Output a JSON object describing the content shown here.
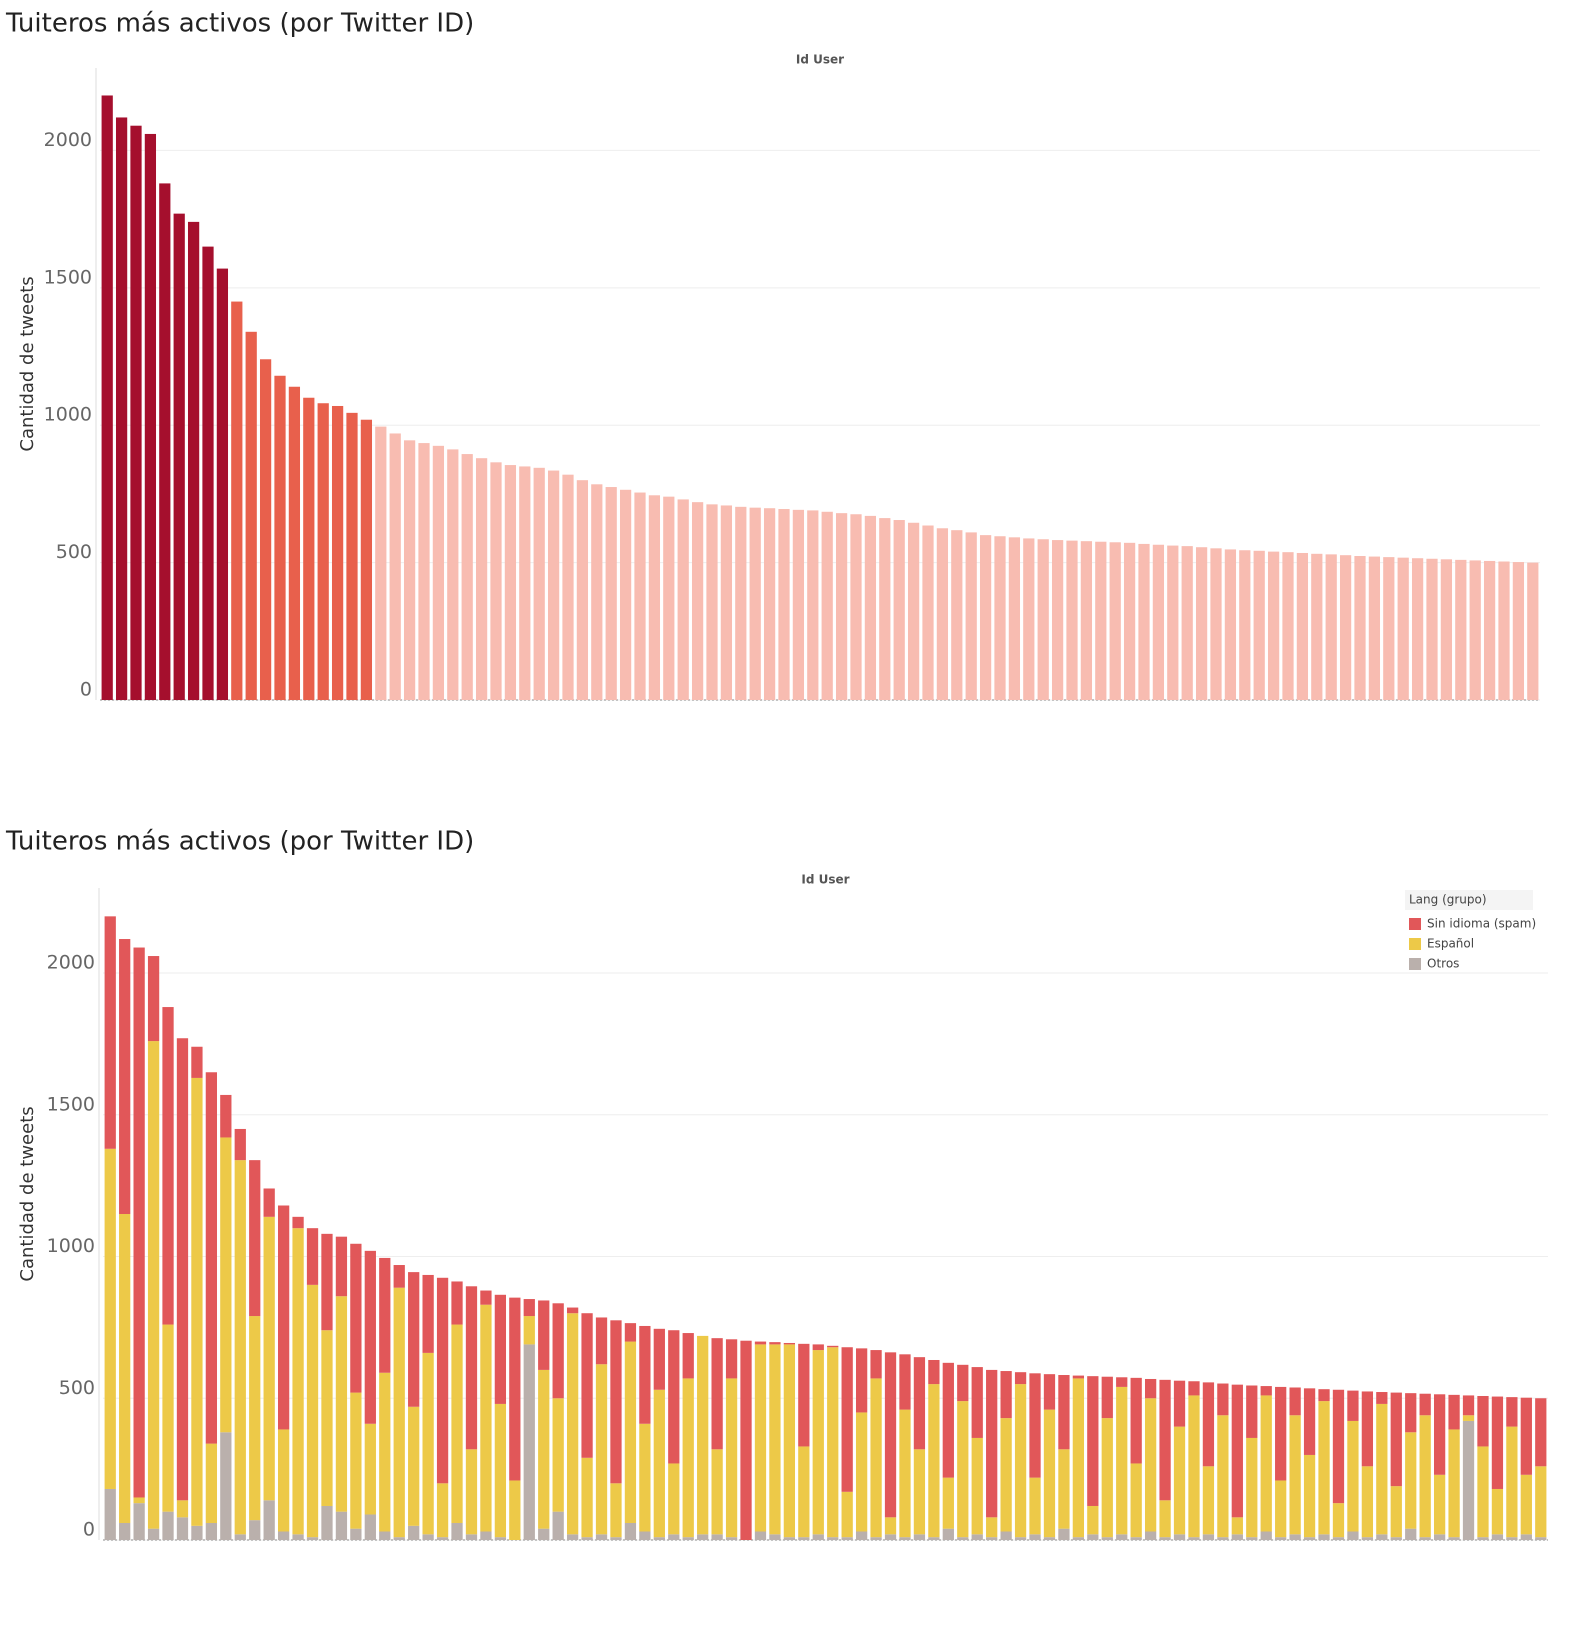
{
  "chart_data": [
    {
      "type": "bar",
      "title": "Tuiteros más activos (por Twitter ID)",
      "x_header": "Id User",
      "y_label": "Cantidad de tweets",
      "categories": [
        null,
        null,
        null,
        null,
        null,
        null,
        null,
        null,
        null,
        null,
        null,
        null,
        null,
        null,
        null,
        null,
        null,
        null,
        null,
        null,
        null,
        null,
        null,
        null,
        null,
        null,
        null,
        null,
        null,
        null,
        null,
        null,
        null,
        null,
        null,
        null,
        null,
        null,
        null,
        null,
        null,
        null,
        null,
        null,
        null,
        null,
        null,
        null,
        null,
        null,
        null,
        null,
        null,
        null,
        null,
        null,
        null,
        null,
        null,
        null,
        null,
        null,
        null,
        null,
        null,
        null,
        null,
        null,
        null,
        null,
        null,
        null,
        null,
        null,
        null,
        null,
        null,
        null,
        null,
        null,
        null,
        null,
        null,
        null,
        null,
        null,
        null,
        null,
        null,
        null,
        null,
        null,
        null,
        null,
        null,
        null,
        null,
        null,
        null,
        null
      ],
      "values": [
        2200,
        2120,
        2090,
        2060,
        1880,
        1770,
        1740,
        1650,
        1570,
        1450,
        1340,
        1240,
        1180,
        1140,
        1100,
        1080,
        1070,
        1045,
        1020,
        995,
        970,
        945,
        935,
        925,
        912,
        895,
        880,
        865,
        855,
        850,
        845,
        835,
        820,
        800,
        785,
        775,
        765,
        755,
        745,
        740,
        730,
        720,
        712,
        708,
        703,
        700,
        698,
        695,
        692,
        690,
        685,
        680,
        676,
        670,
        662,
        655,
        645,
        635,
        625,
        618,
        610,
        600,
        596,
        592,
        588,
        585,
        582,
        580,
        578,
        576,
        574,
        572,
        568,
        565,
        562,
        560,
        556,
        552,
        548,
        545,
        543,
        540,
        538,
        535,
        532,
        530,
        527,
        524,
        522,
        520,
        518,
        516,
        514,
        512,
        510,
        508,
        506,
        504,
        502,
        500
      ],
      "colors": [
        "#a50f2d",
        "#a50f2d",
        "#a50f2d",
        "#a50f2d",
        "#a50f2d",
        "#a50f2d",
        "#a50f2d",
        "#a50f2d",
        "#a50f2d",
        "#e8604c",
        "#e8604c",
        "#e8604c",
        "#e8604c",
        "#e8604c",
        "#e8604c",
        "#e8604c",
        "#e8604c",
        "#e8604c",
        "#e8604c",
        "#f8bcb1",
        "#f8bcb1",
        "#f8bcb1",
        "#f8bcb1",
        "#f8bcb1",
        "#f8bcb1",
        "#f8bcb1",
        "#f8bcb1",
        "#f8bcb1",
        "#f8bcb1",
        "#f8bcb1",
        "#f8bcb1",
        "#f8bcb1",
        "#f8bcb1",
        "#f8bcb1",
        "#f8bcb1",
        "#f8bcb1",
        "#f8bcb1",
        "#f8bcb1",
        "#f8bcb1",
        "#f8bcb1",
        "#f8bcb1",
        "#f8bcb1",
        "#f8bcb1",
        "#f8bcb1",
        "#f8bcb1",
        "#f8bcb1",
        "#f8bcb1",
        "#f8bcb1",
        "#f8bcb1",
        "#f8bcb1",
        "#f8bcb1",
        "#f8bcb1",
        "#f8bcb1",
        "#f8bcb1",
        "#f8bcb1",
        "#f8bcb1",
        "#f8bcb1",
        "#f8bcb1",
        "#f8bcb1",
        "#f8bcb1",
        "#f8bcb1",
        "#f8bcb1",
        "#f8bcb1",
        "#f8bcb1",
        "#f8bcb1",
        "#f8bcb1",
        "#f8bcb1",
        "#f8bcb1",
        "#f8bcb1",
        "#f8bcb1",
        "#f8bcb1",
        "#f8bcb1",
        "#f8bcb1",
        "#f8bcb1",
        "#f8bcb1",
        "#f8bcb1",
        "#f8bcb1",
        "#f8bcb1",
        "#f8bcb1",
        "#f8bcb1",
        "#f8bcb1",
        "#f8bcb1",
        "#f8bcb1",
        "#f8bcb1",
        "#f8bcb1",
        "#f8bcb1",
        "#f8bcb1",
        "#f8bcb1",
        "#f8bcb1",
        "#f8bcb1",
        "#f8bcb1",
        "#f8bcb1",
        "#f8bcb1",
        "#f8bcb1",
        "#f8bcb1",
        "#f8bcb1",
        "#f8bcb1",
        "#f8bcb1",
        "#f8bcb1",
        "#f8bcb1"
      ],
      "ylim": [
        0,
        2300
      ],
      "yticks": [
        0,
        500,
        1000,
        1500,
        2000
      ],
      "grid": true
    },
    {
      "type": "stacked_bar",
      "title": "Tuiteros más activos (por Twitter ID)",
      "x_header": "Id User",
      "y_label": "Cantidad de tweets",
      "legend_title": "Lang (grupo)",
      "legend": "top-right",
      "categories": [
        null,
        null,
        null,
        null,
        null,
        null,
        null,
        null,
        null,
        null,
        null,
        null,
        null,
        null,
        null,
        null,
        null,
        null,
        null,
        null,
        null,
        null,
        null,
        null,
        null,
        null,
        null,
        null,
        null,
        null,
        null,
        null,
        null,
        null,
        null,
        null,
        null,
        null,
        null,
        null,
        null,
        null,
        null,
        null,
        null,
        null,
        null,
        null,
        null,
        null,
        null,
        null,
        null,
        null,
        null,
        null,
        null,
        null,
        null,
        null,
        null,
        null,
        null,
        null,
        null,
        null,
        null,
        null,
        null,
        null,
        null,
        null,
        null,
        null,
        null,
        null,
        null,
        null,
        null,
        null,
        null,
        null,
        null,
        null,
        null,
        null,
        null,
        null,
        null,
        null,
        null,
        null,
        null,
        null,
        null,
        null,
        null,
        null,
        null,
        null
      ],
      "series": [
        {
          "name": "Sin idioma (spam)",
          "color": "#e15759",
          "values": [
            820,
            970,
            1940,
            300,
            1120,
            1630,
            110,
            1310,
            150,
            110,
            550,
            100,
            790,
            40,
            200,
            340,
            210,
            525,
            610,
            405,
            80,
            475,
            275,
            725,
            152,
            575,
            50,
            385,
            645,
            60,
            245,
            335,
            20,
            510,
            165,
            575,
            65,
            345,
            215,
            470,
            160,
            0,
            392,
            138,
            703,
            10,
            8,
            5,
            362,
            20,
            5,
            510,
            226,
            100,
            582,
            195,
            325,
            85,
            405,
            128,
            250,
            520,
            166,
            42,
            368,
            125,
            262,
            10,
            458,
            146,
            34,
            302,
            68,
            425,
            162,
            50,
            296,
            112,
            468,
            185,
            33,
            330,
            98,
            235,
            42,
            400,
            107,
            264,
            42,
            330,
            138,
            76,
            284,
            122,
            70,
            178,
            326,
            104,
            272,
            240
          ]
        },
        {
          "name": "Español",
          "color": "#edc948",
          "values": [
            1200,
            1090,
            20,
            1720,
            660,
            60,
            1580,
            280,
            1040,
            1320,
            720,
            1000,
            360,
            1080,
            890,
            620,
            760,
            480,
            320,
            560,
            880,
            420,
            640,
            190,
            700,
            300,
            800,
            470,
            210,
            100,
            560,
            400,
            780,
            280,
            600,
            190,
            640,
            380,
            520,
            250,
            560,
            700,
            300,
            560,
            0,
            660,
            670,
            680,
            320,
            650,
            670,
            160,
            420,
            560,
            60,
            450,
            300,
            540,
            180,
            480,
            340,
            70,
            400,
            540,
            200,
            450,
            280,
            560,
            100,
            420,
            520,
            260,
            470,
            130,
            380,
            500,
            240,
            430,
            60,
            350,
            480,
            200,
            420,
            290,
            470,
            120,
            390,
            250,
            460,
            180,
            340,
            430,
            210,
            380,
            20,
            320,
            160,
            390,
            210,
            250
          ]
        },
        {
          "name": "Otros",
          "color": "#bab0ac",
          "values": [
            180,
            60,
            130,
            40,
            100,
            80,
            50,
            60,
            380,
            20,
            70,
            140,
            30,
            20,
            10,
            120,
            100,
            40,
            90,
            30,
            10,
            50,
            20,
            10,
            60,
            20,
            30,
            10,
            0,
            690,
            40,
            100,
            20,
            10,
            20,
            10,
            60,
            30,
            10,
            20,
            10,
            20,
            20,
            10,
            0,
            30,
            20,
            10,
            10,
            20,
            10,
            10,
            30,
            10,
            20,
            10,
            20,
            10,
            40,
            10,
            20,
            10,
            30,
            10,
            20,
            10,
            40,
            10,
            20,
            10,
            20,
            10,
            30,
            10,
            20,
            10,
            20,
            10,
            20,
            10,
            30,
            10,
            20,
            10,
            20,
            10,
            30,
            10,
            20,
            10,
            40,
            10,
            20,
            10,
            420,
            10,
            20,
            10,
            20,
            10
          ]
        }
      ],
      "ylim": [
        0,
        2300
      ],
      "yticks": [
        0,
        500,
        1000,
        1500,
        2000
      ],
      "grid": true
    }
  ]
}
